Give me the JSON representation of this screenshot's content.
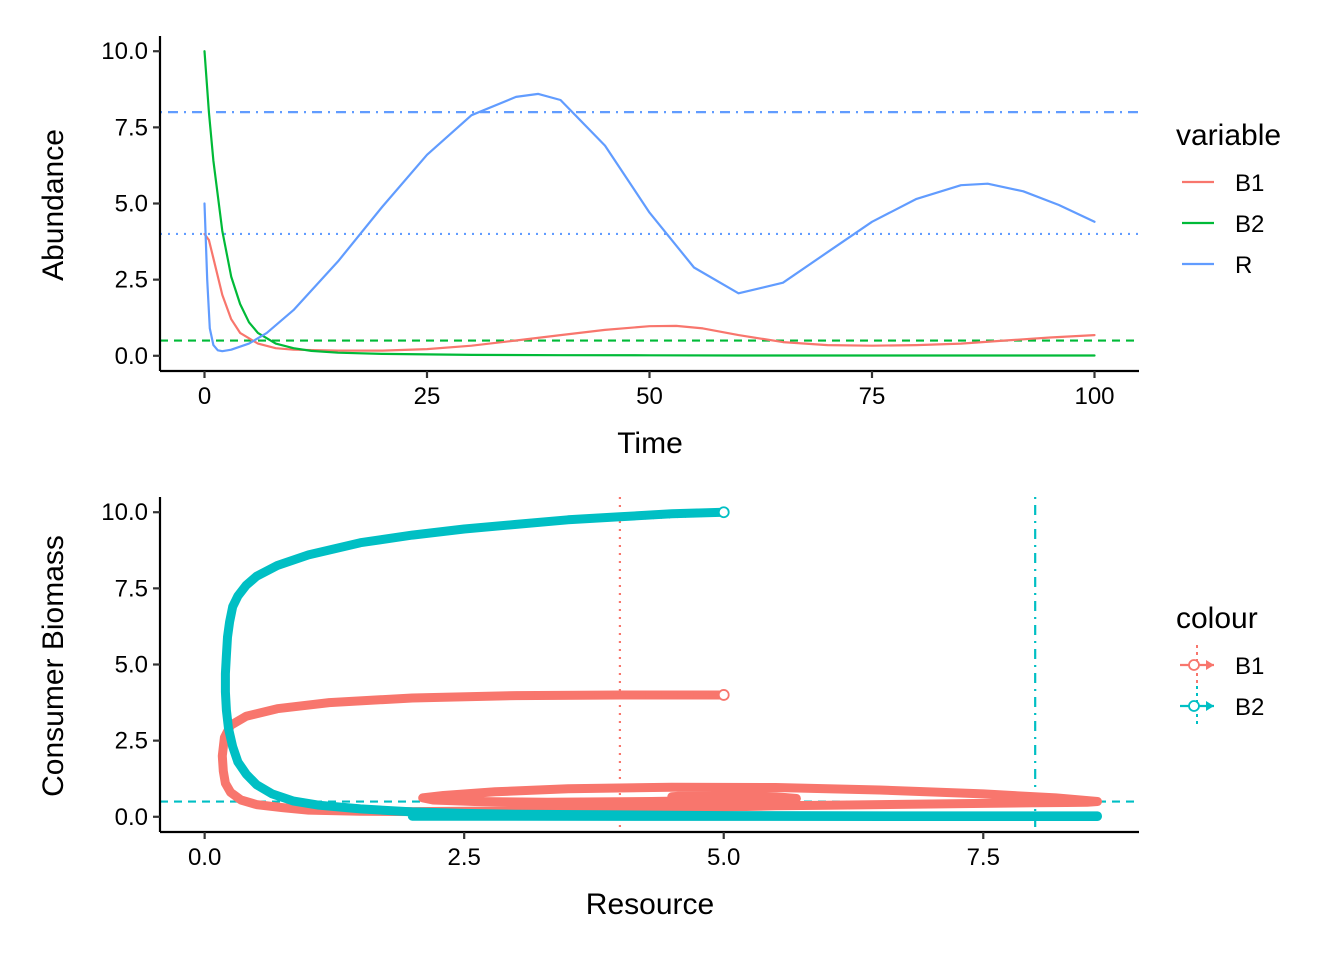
{
  "chart_data": [
    {
      "type": "line",
      "xlabel": "Time",
      "ylabel": "Abundance",
      "xlim": [
        -5,
        105
      ],
      "ylim": [
        -0.5,
        10.5
      ],
      "xticks": [
        0,
        25,
        50,
        75,
        100
      ],
      "xtick_labels": [
        "0",
        "25",
        "50",
        "75",
        "100"
      ],
      "yticks": [
        0,
        2.5,
        5,
        7.5,
        10
      ],
      "ytick_labels": [
        "0.0",
        "2.5",
        "5.0",
        "7.5",
        "10.0"
      ],
      "grid": false,
      "legend": {
        "title": "variable",
        "position": "right",
        "entries": [
          "B1",
          "B2",
          "R"
        ]
      },
      "series": [
        {
          "name": "B1",
          "color": "#F8766D",
          "x": [
            0,
            0.5,
            1,
            2,
            3,
            4,
            6,
            8,
            10,
            15,
            20,
            25,
            30,
            35,
            40,
            45,
            50,
            53,
            56,
            60,
            65,
            70,
            75,
            80,
            85,
            90,
            95,
            100
          ],
          "y": [
            4.0,
            3.8,
            3.2,
            2.0,
            1.2,
            0.75,
            0.4,
            0.25,
            0.2,
            0.17,
            0.17,
            0.22,
            0.33,
            0.5,
            0.68,
            0.85,
            0.97,
            0.98,
            0.9,
            0.68,
            0.45,
            0.35,
            0.33,
            0.35,
            0.4,
            0.5,
            0.6,
            0.68
          ]
        },
        {
          "name": "B2",
          "color": "#00BA38",
          "x": [
            0,
            0.5,
            1,
            2,
            3,
            4,
            5,
            6,
            8,
            10,
            12,
            15,
            20,
            30,
            40,
            50,
            60,
            70,
            80,
            90,
            100
          ],
          "y": [
            10.0,
            8.0,
            6.4,
            4.1,
            2.6,
            1.7,
            1.1,
            0.75,
            0.4,
            0.25,
            0.16,
            0.1,
            0.06,
            0.03,
            0.02,
            0.015,
            0.01,
            0.01,
            0.01,
            0.01,
            0.01
          ]
        },
        {
          "name": "R",
          "color": "#619CFF",
          "x": [
            0,
            0.3,
            0.6,
            1,
            1.5,
            2,
            3,
            5,
            7,
            10,
            15,
            20,
            25,
            30,
            35,
            37.5,
            40,
            45,
            50,
            55,
            60,
            65,
            70,
            75,
            80,
            85,
            88,
            92,
            96,
            100
          ],
          "y": [
            5.0,
            2.5,
            0.9,
            0.35,
            0.18,
            0.15,
            0.2,
            0.4,
            0.75,
            1.5,
            3.1,
            4.9,
            6.6,
            7.9,
            8.5,
            8.6,
            8.4,
            6.9,
            4.7,
            2.9,
            2.05,
            2.4,
            3.4,
            4.4,
            5.15,
            5.6,
            5.65,
            5.4,
            4.95,
            4.4
          ]
        }
      ],
      "reference_lines": [
        {
          "orientation": "horizontal",
          "value": 8.0,
          "color": "#619CFF",
          "linetype": "dotdash"
        },
        {
          "orientation": "horizontal",
          "value": 4.0,
          "color": "#619CFF",
          "linetype": "dotted"
        },
        {
          "orientation": "horizontal",
          "value": 0.5,
          "color": "#00BA38",
          "linetype": "dashed"
        }
      ]
    },
    {
      "type": "line",
      "xlabel": "Resource",
      "ylabel": "Consumer Biomass",
      "xlim": [
        -0.43,
        9.0
      ],
      "ylim": [
        -0.5,
        10.5
      ],
      "xticks": [
        0,
        2.5,
        5,
        7.5
      ],
      "xtick_labels": [
        "0.0",
        "2.5",
        "5.0",
        "7.5"
      ],
      "yticks": [
        0,
        2.5,
        5,
        7.5,
        10
      ],
      "ytick_labels": [
        "0.0",
        "2.5",
        "5.0",
        "7.5",
        "10.0"
      ],
      "grid": false,
      "legend": {
        "title": "colour",
        "position": "right",
        "entries": [
          "B1",
          "B2"
        ]
      },
      "series": [
        {
          "name": "B1",
          "color": "#F8766D",
          "start_point": [
            5.0,
            4.0
          ],
          "x": [
            5.0,
            4.0,
            3.0,
            2.0,
            1.2,
            0.7,
            0.4,
            0.25,
            0.19,
            0.17,
            0.18,
            0.2,
            0.25,
            0.35,
            0.5,
            0.75,
            1.0,
            1.5,
            2.0,
            2.5,
            3.0,
            3.5,
            4.0,
            4.5,
            5.0,
            5.5,
            6.0,
            6.5,
            7.0,
            7.5,
            8.0,
            8.3,
            8.5,
            8.6,
            8.2,
            7.5,
            6.5,
            5.5,
            4.5,
            3.5,
            2.8,
            2.3,
            2.1,
            2.2,
            2.6,
            3.3,
            4.3,
            5.2,
            5.7,
            5.5,
            5.0,
            4.6,
            4.5
          ],
          "y": [
            4.0,
            4.0,
            3.98,
            3.9,
            3.75,
            3.55,
            3.3,
            3.0,
            2.6,
            2.0,
            1.5,
            1.1,
            0.8,
            0.55,
            0.4,
            0.3,
            0.22,
            0.18,
            0.17,
            0.18,
            0.2,
            0.22,
            0.25,
            0.28,
            0.32,
            0.36,
            0.38,
            0.4,
            0.42,
            0.44,
            0.46,
            0.47,
            0.48,
            0.5,
            0.62,
            0.75,
            0.88,
            0.96,
            0.97,
            0.92,
            0.82,
            0.7,
            0.62,
            0.55,
            0.5,
            0.48,
            0.5,
            0.55,
            0.6,
            0.66,
            0.7,
            0.68,
            0.66
          ]
        },
        {
          "name": "B2",
          "color": "#00BFC4",
          "start_point": [
            5.0,
            10.0
          ],
          "x": [
            5.0,
            4.5,
            4.0,
            3.5,
            3.0,
            2.5,
            2.0,
            1.5,
            1.0,
            0.7,
            0.5,
            0.4,
            0.32,
            0.27,
            0.24,
            0.22,
            0.21,
            0.2,
            0.2,
            0.21,
            0.23,
            0.27,
            0.32,
            0.4,
            0.5,
            0.65,
            0.85,
            1.1,
            1.5,
            2.0,
            2.5,
            3.0,
            4.0,
            5.0,
            6.0,
            7.0,
            8.0,
            8.6,
            7.0,
            5.0,
            3.5,
            2.3,
            2.0,
            3.0,
            5.0,
            7.0,
            8.6
          ],
          "y": [
            10.0,
            9.95,
            9.85,
            9.75,
            9.6,
            9.45,
            9.25,
            9.0,
            8.6,
            8.25,
            7.9,
            7.6,
            7.25,
            6.9,
            6.4,
            5.9,
            5.3,
            4.7,
            4.1,
            3.5,
            2.9,
            2.3,
            1.8,
            1.4,
            1.05,
            0.75,
            0.52,
            0.38,
            0.26,
            0.16,
            0.11,
            0.08,
            0.06,
            0.04,
            0.035,
            0.03,
            0.03,
            0.03,
            0.025,
            0.02,
            0.02,
            0.02,
            0.02,
            0.015,
            0.012,
            0.01,
            0.01
          ]
        }
      ],
      "reference_lines": [
        {
          "orientation": "vertical",
          "value": 4.0,
          "color": "#F8766D",
          "linetype": "dotted"
        },
        {
          "orientation": "vertical",
          "value": 8.0,
          "color": "#00BFC4",
          "linetype": "dotdash"
        },
        {
          "orientation": "horizontal",
          "value": 0.5,
          "color": "#00BFC4",
          "linetype": "dashed"
        }
      ]
    }
  ]
}
